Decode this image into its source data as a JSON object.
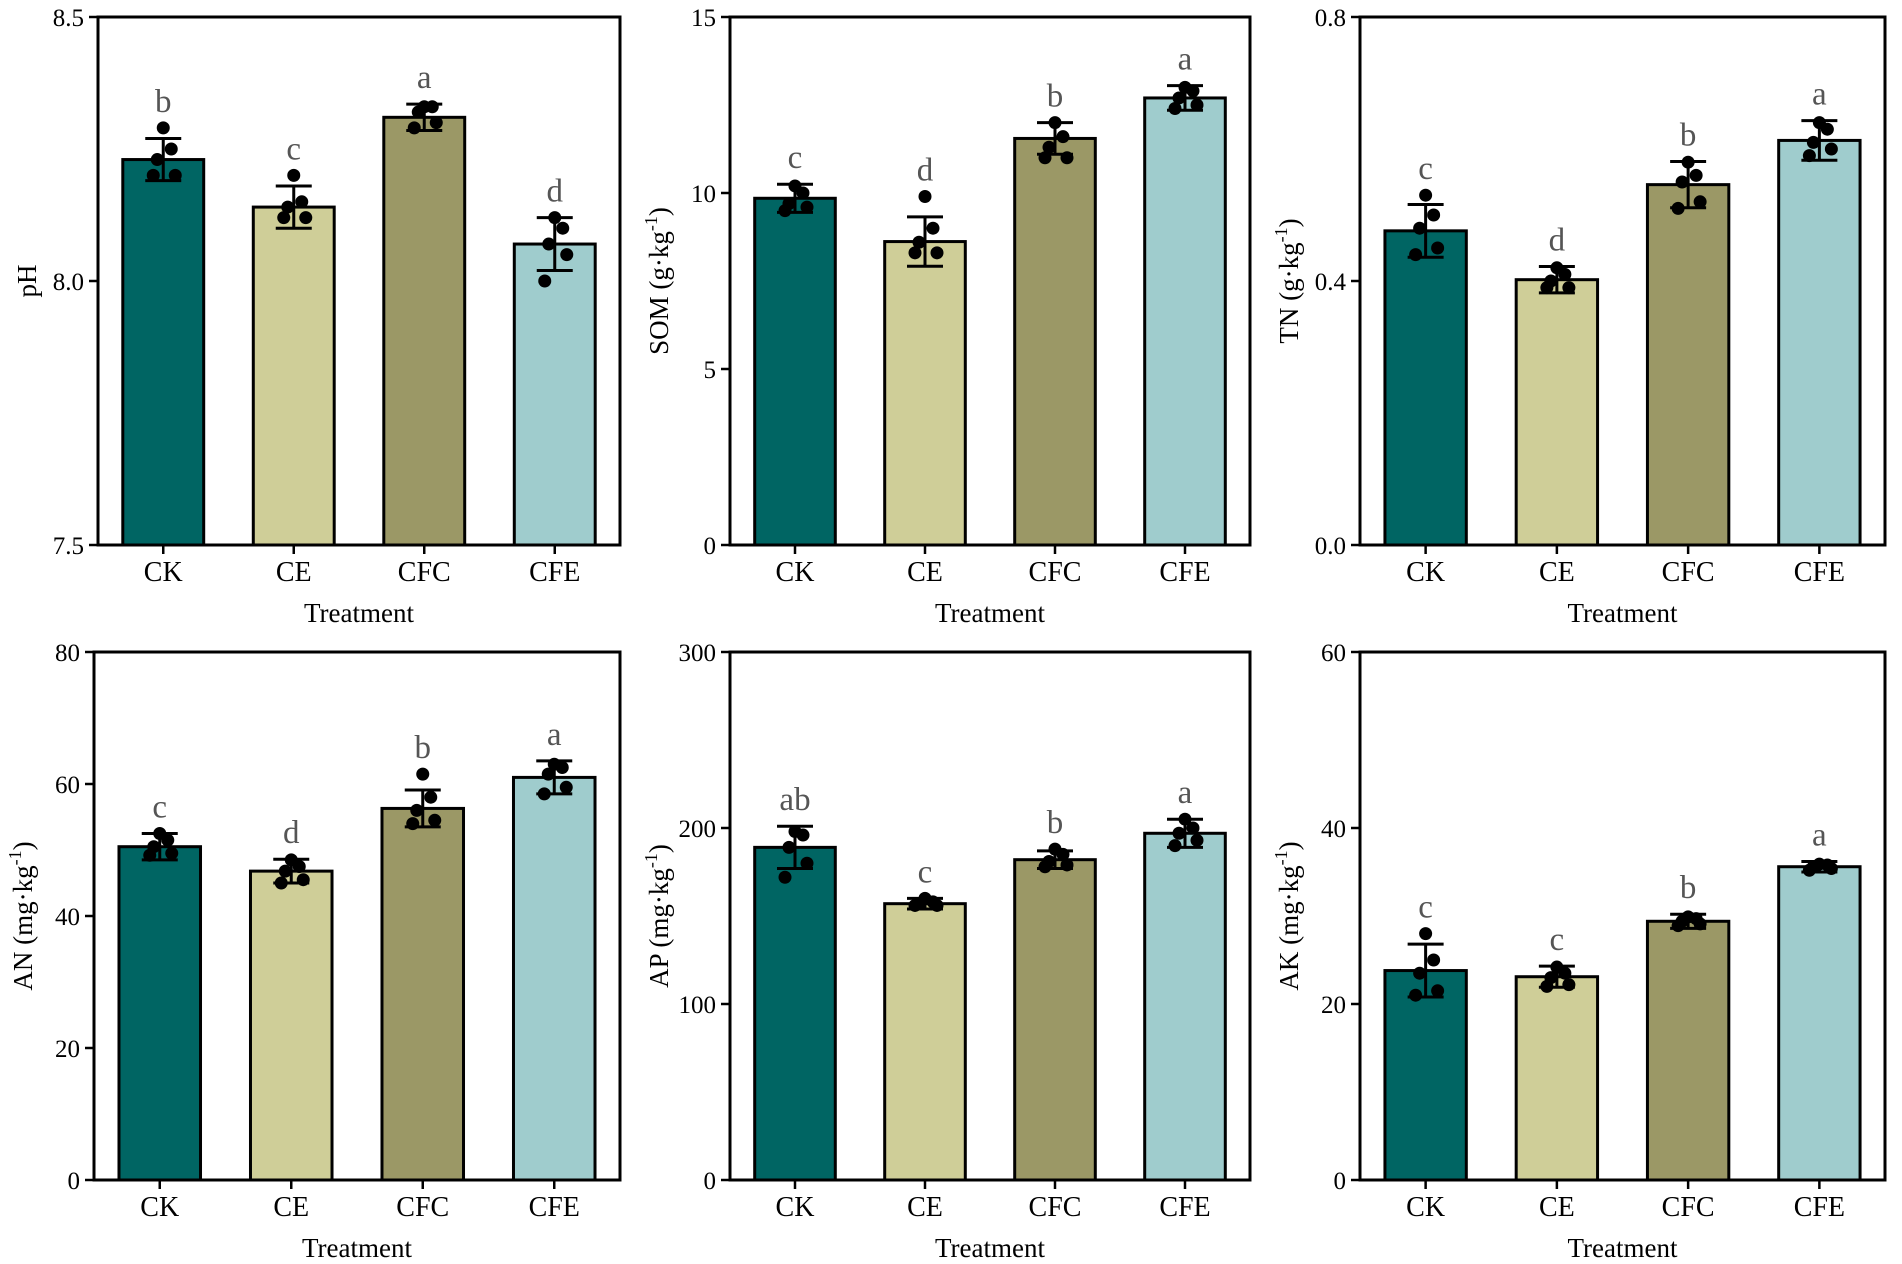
{
  "chart_data": [
    {
      "type": "bar",
      "id": "ph",
      "categories": [
        "CK",
        "CE",
        "CFC",
        "CFE"
      ],
      "values": [
        8.23,
        8.14,
        8.31,
        8.07
      ],
      "errors": [
        0.04,
        0.04,
        0.025,
        0.05
      ],
      "points": [
        [
          8.29,
          8.25,
          8.23,
          8.2,
          8.2
        ],
        [
          8.2,
          8.15,
          8.14,
          8.12,
          8.12
        ],
        [
          8.33,
          8.33,
          8.32,
          8.3,
          8.29
        ],
        [
          8.12,
          8.1,
          8.07,
          8.05,
          8.0
        ]
      ],
      "letters": [
        "b",
        "c",
        "a",
        "d"
      ],
      "ylabel": "pH",
      "ylabel_sup": "",
      "xlabel": "Treatment",
      "ylim": [
        7.5,
        8.5
      ],
      "ticks": [
        "7.5",
        "8.0",
        "8.5"
      ],
      "colors": [
        "#006563",
        "#cfce98",
        "#9b9866",
        "#9fcccd"
      ]
    },
    {
      "type": "bar",
      "id": "som",
      "categories": [
        "CK",
        "CE",
        "CFC",
        "CFE"
      ],
      "values": [
        9.85,
        8.62,
        11.55,
        12.7
      ],
      "errors": [
        0.4,
        0.7,
        0.45,
        0.35
      ],
      "points": [
        [
          10.2,
          10.0,
          9.7,
          9.6,
          9.5
        ],
        [
          9.9,
          9.0,
          8.6,
          8.3,
          8.3
        ],
        [
          12.0,
          11.6,
          11.3,
          11.0,
          11.0
        ],
        [
          13.0,
          12.9,
          12.7,
          12.5,
          12.4
        ]
      ],
      "letters": [
        "c",
        "d",
        "b",
        "a"
      ],
      "ylabel": "SOM (g·kg",
      "ylabel_sup": "-1",
      "ylabel_tail": ")",
      "xlabel": "Treatment",
      "ylim": [
        0,
        15
      ],
      "ticks": [
        "0",
        "5",
        "10",
        "15"
      ],
      "colors": [
        "#006563",
        "#cfce98",
        "#9b9866",
        "#9fcccd"
      ]
    },
    {
      "type": "bar",
      "id": "tn",
      "categories": [
        "CK",
        "CE",
        "CFC",
        "CFE"
      ],
      "values": [
        0.476,
        0.402,
        0.546,
        0.613
      ],
      "errors": [
        0.04,
        0.02,
        0.035,
        0.03
      ],
      "points": [
        [
          0.53,
          0.5,
          0.48,
          0.45,
          0.44
        ],
        [
          0.42,
          0.41,
          0.4,
          0.39,
          0.39
        ],
        [
          0.58,
          0.56,
          0.55,
          0.52,
          0.51
        ],
        [
          0.64,
          0.63,
          0.61,
          0.6,
          0.59
        ]
      ],
      "letters": [
        "c",
        "d",
        "b",
        "a"
      ],
      "ylabel": "TN (g·kg",
      "ylabel_sup": "-1",
      "ylabel_tail": ")",
      "xlabel": "Treatment",
      "ylim": [
        0.0,
        0.8
      ],
      "ticks": [
        "0.0",
        "0.4",
        "0.8"
      ],
      "colors": [
        "#006563",
        "#cfce98",
        "#9b9866",
        "#9fcccd"
      ]
    },
    {
      "type": "bar",
      "id": "an",
      "categories": [
        "CK",
        "CE",
        "CFC",
        "CFE"
      ],
      "values": [
        50.5,
        46.8,
        56.3,
        61.0
      ],
      "errors": [
        2.0,
        1.8,
        2.8,
        2.5
      ],
      "points": [
        [
          52.5,
          51.5,
          50.5,
          49.5,
          49.2
        ],
        [
          48.5,
          47.5,
          46.8,
          45.5,
          45.0
        ],
        [
          61.5,
          58.0,
          56.0,
          54.5,
          54.0
        ],
        [
          63.0,
          62.5,
          61.5,
          59.5,
          58.5
        ]
      ],
      "letters": [
        "c",
        "d",
        "b",
        "a"
      ],
      "ylabel": "AN (mg·kg",
      "ylabel_sup": "-1",
      "ylabel_tail": ")",
      "xlabel": "Treatment",
      "ylim": [
        0,
        80
      ],
      "ticks": [
        "0",
        "20",
        "40",
        "60",
        "80"
      ],
      "colors": [
        "#006563",
        "#cfce98",
        "#9b9866",
        "#9fcccd"
      ]
    },
    {
      "type": "bar",
      "id": "ap",
      "categories": [
        "CK",
        "CE",
        "CFC",
        "CFE"
      ],
      "values": [
        189,
        157,
        182,
        197
      ],
      "errors": [
        12,
        3,
        5,
        8
      ],
      "points": [
        [
          198,
          196,
          189,
          180,
          172
        ],
        [
          160,
          158,
          157,
          156,
          156
        ],
        [
          188,
          185,
          181,
          179,
          178
        ],
        [
          205,
          200,
          197,
          193,
          190
        ]
      ],
      "letters": [
        "ab",
        "c",
        "b",
        "a"
      ],
      "ylabel": "AP (mg·kg",
      "ylabel_sup": "-1",
      "ylabel_tail": ")",
      "xlabel": "Treatment",
      "ylim": [
        0,
        300
      ],
      "ticks": [
        "0",
        "100",
        "200",
        "300"
      ],
      "colors": [
        "#006563",
        "#cfce98",
        "#9b9866",
        "#9fcccd"
      ]
    },
    {
      "type": "bar",
      "id": "ak",
      "categories": [
        "CK",
        "CE",
        "CFC",
        "CFE"
      ],
      "values": [
        23.8,
        23.1,
        29.4,
        35.6
      ],
      "errors": [
        3.0,
        1.2,
        0.8,
        0.6
      ],
      "points": [
        [
          28.0,
          25.0,
          23.5,
          21.5,
          21.0
        ],
        [
          24.2,
          23.5,
          23.0,
          22.2,
          22.0
        ],
        [
          29.9,
          29.7,
          29.4,
          29.1,
          28.9
        ],
        [
          35.9,
          35.8,
          35.6,
          35.4,
          35.2
        ]
      ],
      "letters": [
        "c",
        "c",
        "b",
        "a"
      ],
      "ylabel": "AK (mg·kg",
      "ylabel_sup": "-1",
      "ylabel_tail": ")",
      "xlabel": "Treatment",
      "ylim": [
        0,
        60
      ],
      "ticks": [
        "0",
        "20",
        "40",
        "60"
      ],
      "colors": [
        "#006563",
        "#cfce98",
        "#9b9866",
        "#9fcccd"
      ]
    }
  ]
}
